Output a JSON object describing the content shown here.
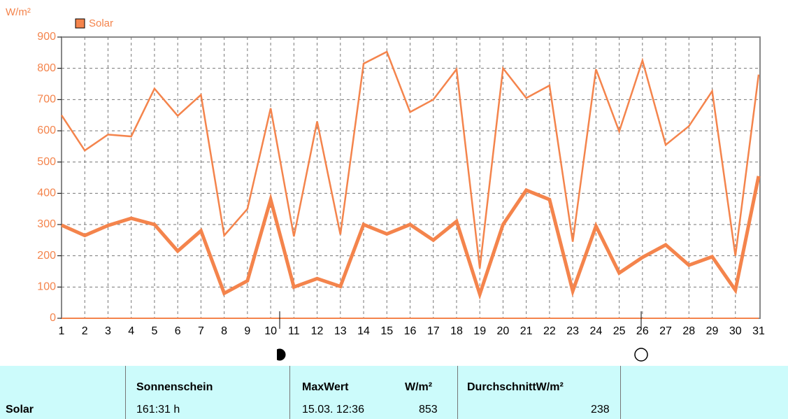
{
  "chart_data": {
    "type": "line",
    "y_axis_label": "W/m²",
    "legend": {
      "label": "Solar",
      "color": "#f4844c"
    },
    "categories": [
      "1",
      "2",
      "3",
      "4",
      "5",
      "6",
      "7",
      "8",
      "9",
      "10",
      "11",
      "12",
      "13",
      "14",
      "15",
      "16",
      "17",
      "18",
      "19",
      "20",
      "21",
      "22",
      "23",
      "24",
      "25",
      "26",
      "27",
      "28",
      "29",
      "30",
      "31"
    ],
    "series": [
      {
        "color": "#f4844c",
        "width": 2.5,
        "values": [
          650,
          537,
          588,
          582,
          735,
          648,
          715,
          265,
          350,
          672,
          262,
          630,
          268,
          815,
          853,
          660,
          700,
          797,
          160,
          800,
          705,
          745,
          245,
          797,
          598,
          825,
          555,
          615,
          727,
          200,
          780
        ]
      },
      {
        "color": "#f4844c",
        "width": 5,
        "values": [
          298,
          265,
          297,
          320,
          300,
          215,
          280,
          80,
          120,
          380,
          100,
          127,
          102,
          300,
          270,
          300,
          250,
          310,
          77,
          300,
          410,
          380,
          87,
          295,
          145,
          195,
          235,
          170,
          197,
          90,
          455
        ]
      }
    ],
    "ylim": [
      0,
      900
    ],
    "yticks": [
      0,
      100,
      200,
      300,
      400,
      500,
      600,
      700,
      800,
      900
    ],
    "grid": true
  },
  "table": {
    "row_label": "Solar",
    "sunshine": {
      "header": "Sonnenschein",
      "value": "161:31 h"
    },
    "max": {
      "header": "MaxWert",
      "unit": "W/m²",
      "time": "15.03. 12:36",
      "value": "853"
    },
    "avg": {
      "header": "DurchschnittW/m²",
      "value": "238"
    }
  }
}
